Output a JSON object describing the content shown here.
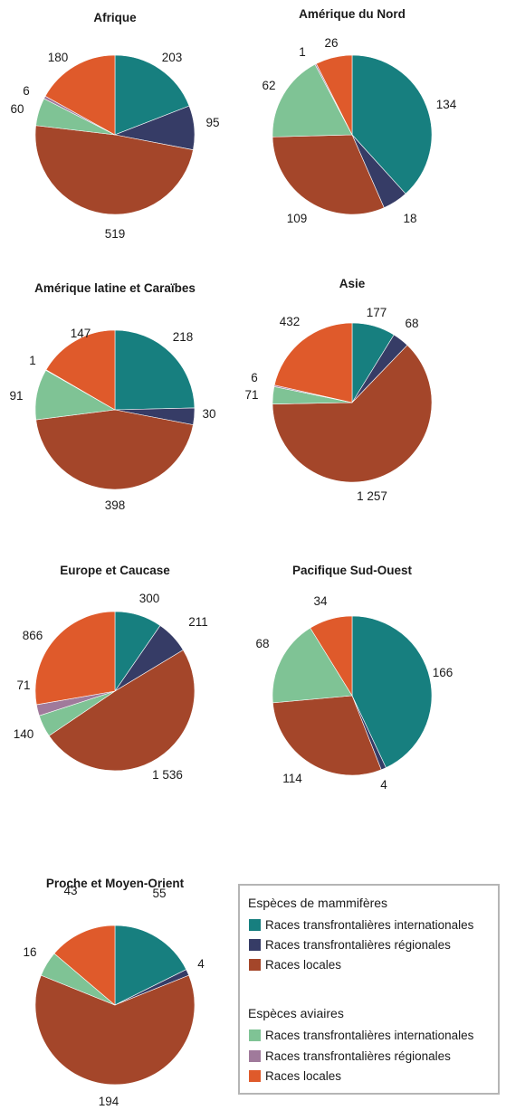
{
  "colors": {
    "mammal_international": "#177f7f",
    "mammal_regional": "#363c66",
    "mammal_local": "#a4462a",
    "avian_international": "#7fc395",
    "avian_regional": "#a07a9b",
    "avian_local": "#df5a2b"
  },
  "legend": {
    "mammal_title": "Espèces de mammifères",
    "avian_title": "Espèces aviaires",
    "items": [
      {
        "label": "Races transfrontalières internationales",
        "color": "#177f7f"
      },
      {
        "label": "Races transfrontalières régionales",
        "color": "#363c66"
      },
      {
        "label": "Races locales",
        "color": "#a4462a"
      },
      {
        "label": "Races transfrontalières internationales",
        "color": "#7fc395"
      },
      {
        "label": "Races transfrontalières régionales",
        "color": "#a07a9b"
      },
      {
        "label": "Races locales",
        "color": "#df5a2b"
      }
    ]
  },
  "chart_data": [
    {
      "type": "pie",
      "title": "Afrique",
      "slices": [
        {
          "value": 203,
          "label": "203",
          "color": "#177f7f"
        },
        {
          "value": 95,
          "label": "95",
          "color": "#363c66"
        },
        {
          "value": 519,
          "label": "519",
          "color": "#a4462a"
        },
        {
          "value": 60,
          "label": "60",
          "color": "#7fc395"
        },
        {
          "value": 6,
          "label": "6",
          "color": "#a07a9b"
        },
        {
          "value": 180,
          "label": "180",
          "color": "#df5a2b"
        }
      ]
    },
    {
      "type": "pie",
      "title": "Amérique du Nord",
      "slices": [
        {
          "value": 134,
          "label": "134",
          "color": "#177f7f"
        },
        {
          "value": 18,
          "label": "18",
          "color": "#363c66"
        },
        {
          "value": 109,
          "label": "109",
          "color": "#a4462a"
        },
        {
          "value": 62,
          "label": "62",
          "color": "#7fc395"
        },
        {
          "value": 1,
          "label": "1",
          "color": "#a07a9b"
        },
        {
          "value": 26,
          "label": "26",
          "color": "#df5a2b"
        }
      ]
    },
    {
      "type": "pie",
      "title": "Amérique latine et Caraïbes",
      "slices": [
        {
          "value": 218,
          "label": "218",
          "color": "#177f7f"
        },
        {
          "value": 30,
          "label": "30",
          "color": "#363c66"
        },
        {
          "value": 398,
          "label": "398",
          "color": "#a4462a"
        },
        {
          "value": 91,
          "label": "91",
          "color": "#7fc395"
        },
        {
          "value": 1,
          "label": "1",
          "color": "#a07a9b"
        },
        {
          "value": 147,
          "label": "147",
          "color": "#df5a2b"
        }
      ]
    },
    {
      "type": "pie",
      "title": "Asie",
      "slices": [
        {
          "value": 177,
          "label": "177",
          "color": "#177f7f"
        },
        {
          "value": 68,
          "label": "68",
          "color": "#363c66"
        },
        {
          "value": 1257,
          "label": "1 257",
          "color": "#a4462a"
        },
        {
          "value": 71,
          "label": "71",
          "color": "#7fc395"
        },
        {
          "value": 6,
          "label": "6",
          "color": "#a07a9b"
        },
        {
          "value": 432,
          "label": "432",
          "color": "#df5a2b"
        }
      ]
    },
    {
      "type": "pie",
      "title": "Europe et Caucase",
      "slices": [
        {
          "value": 300,
          "label": "300",
          "color": "#177f7f"
        },
        {
          "value": 211,
          "label": "211",
          "color": "#363c66"
        },
        {
          "value": 1536,
          "label": "1 536",
          "color": "#a4462a"
        },
        {
          "value": 140,
          "label": "140",
          "color": "#7fc395"
        },
        {
          "value": 71,
          "label": "71",
          "color": "#a07a9b"
        },
        {
          "value": 866,
          "label": "866",
          "color": "#df5a2b"
        }
      ]
    },
    {
      "type": "pie",
      "title": "Pacifique Sud-Ouest",
      "slices": [
        {
          "value": 166,
          "label": "166",
          "color": "#177f7f"
        },
        {
          "value": 4,
          "label": "4",
          "color": "#363c66"
        },
        {
          "value": 114,
          "label": "114",
          "color": "#a4462a"
        },
        {
          "value": 68,
          "label": "68",
          "color": "#7fc395"
        },
        {
          "value": 0,
          "label": "",
          "color": "#a07a9b"
        },
        {
          "value": 34,
          "label": "34",
          "color": "#df5a2b"
        }
      ]
    },
    {
      "type": "pie",
      "title": "Proche et Moyen-Orient",
      "slices": [
        {
          "value": 55,
          "label": "55",
          "color": "#177f7f"
        },
        {
          "value": 4,
          "label": "4",
          "color": "#363c66"
        },
        {
          "value": 194,
          "label": "194",
          "color": "#a4462a"
        },
        {
          "value": 16,
          "label": "16",
          "color": "#7fc395"
        },
        {
          "value": 0,
          "label": "",
          "color": "#a07a9b"
        },
        {
          "value": 43,
          "label": "43",
          "color": "#df5a2b"
        }
      ]
    }
  ]
}
